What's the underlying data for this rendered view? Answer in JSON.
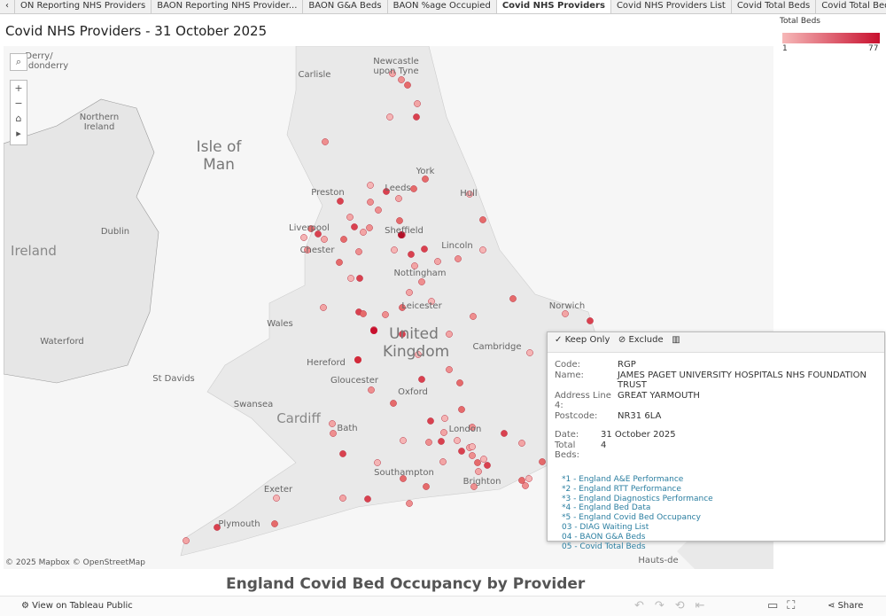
{
  "tabs": [
    "ON Reporting NHS Providers",
    "BAON Reporting NHS Provider...",
    "BAON G&A Beds",
    "BAON %age Occupied",
    "Covid NHS Providers",
    "Covid NHS Providers List",
    "Covid Total Beds",
    "Covid Total Beds by Year"
  ],
  "active_tab": 4,
  "title": "Covid NHS Providers - 31 October 2025",
  "legend": {
    "title": "Total Beds",
    "min": 1,
    "max": 77
  },
  "map_labels": [
    "Newcastle upon Tyne",
    "Carlisle",
    "Derry/ Londonderry",
    "Northern Ireland",
    "Isle of Man",
    "York",
    "Preston",
    "Leeds",
    "Hull",
    "Dublin",
    "Liverpool",
    "Sheffield",
    "Ireland",
    "Lincoln",
    "Chester",
    "Nottingham",
    "Norwich",
    "Wales",
    "Leicester",
    "United Kingdom",
    "Cambridge",
    "Hereford",
    "Waterford",
    "St Davids",
    "Gloucester",
    "Oxford",
    "Swansea",
    "Cardiff",
    "Bath",
    "London",
    "Southampton",
    "Brighton",
    "Exeter",
    "Plymouth",
    "Hauts-de"
  ],
  "attribution": "© 2025 Mapbox © OpenStreetMap",
  "tooltip": {
    "actions": [
      "Keep Only",
      "Exclude"
    ],
    "fields": [
      [
        "Code:",
        "RGP"
      ],
      [
        "Name:",
        "JAMES PAGET UNIVERSITY HOSPITALS NHS FOUNDATION TRUST"
      ],
      [
        "Address Line 4:",
        "GREAT YARMOUTH"
      ],
      [
        "Postcode:",
        "NR31 6LA"
      ]
    ],
    "date_label": "Date:",
    "date": "31 October 2025",
    "beds_label": "Total Beds:",
    "beds": 4,
    "links": [
      "*1 - England A&E Performance",
      "*2 - England RTT Performance",
      "*3 - England Diagnostics Performance",
      "*4 - England Bed Data",
      "*5 - England Covid Bed Occupancy",
      "03 - DIAG Waiting List",
      "04 - BAON G&A Beds",
      "05 - Covid Total Beds"
    ]
  },
  "caption": "England Covid Bed Occupancy by Provider",
  "footer": {
    "view": "View on Tableau Public",
    "share": "Share"
  }
}
